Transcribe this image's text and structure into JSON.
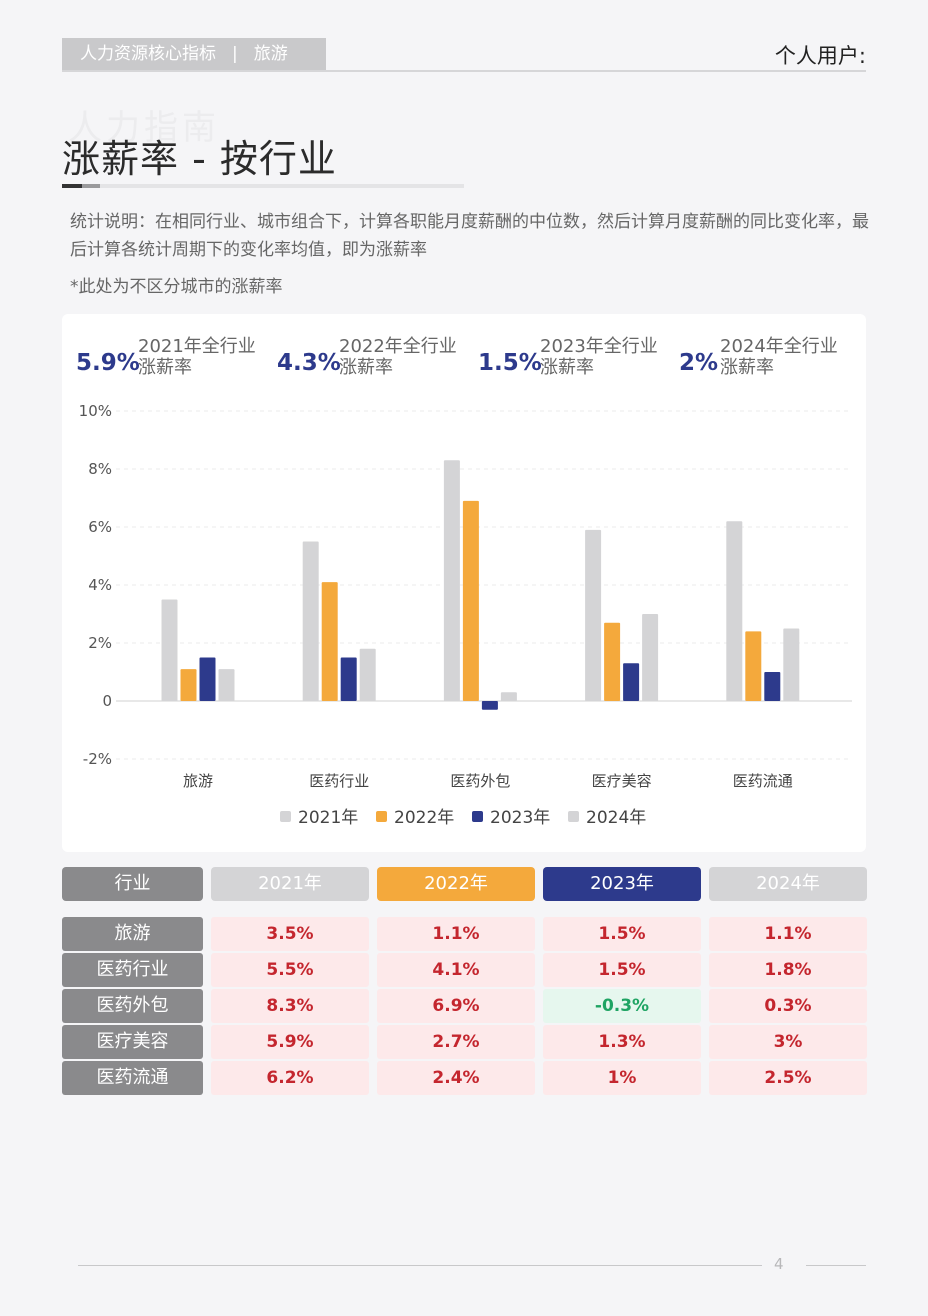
{
  "header": {
    "section": "人力资源核心指标",
    "separator": "|",
    "category": "旅游",
    "user_label": "个人用户:"
  },
  "watermark": "人力指南",
  "title": "涨薪率 - 按行业",
  "description": "统计说明：在相同行业、城市组合下，计算各职能月度薪酬的中位数，然后计算月度薪酬的同比变化率，最后计算各统计周期下的变化率均值，即为涨薪率",
  "note": "*此处为不区分城市的涨薪率",
  "kpis": [
    {
      "value": "5.9%",
      "label_line1": "2021年全行业",
      "label_line2": "涨薪率"
    },
    {
      "value": "4.3%",
      "label_line1": "2022年全行业",
      "label_line2": "涨薪率"
    },
    {
      "value": "1.5%",
      "label_line1": "2023年全行业",
      "label_line2": "涨薪率"
    },
    {
      "value": "2%",
      "label_line1": "2024年全行业",
      "label_line2": "涨薪率"
    }
  ],
  "chart_data": {
    "type": "bar",
    "categories": [
      "旅游",
      "医药行业",
      "医药外包",
      "医疗美容",
      "医药流通"
    ],
    "series": [
      {
        "name": "2021年",
        "color": "#d4d4d6",
        "values": [
          3.5,
          5.5,
          8.3,
          5.9,
          6.2
        ]
      },
      {
        "name": "2022年",
        "color": "#f4a93c",
        "values": [
          1.1,
          4.1,
          6.9,
          2.7,
          2.4
        ]
      },
      {
        "name": "2023年",
        "color": "#2d3a8c",
        "values": [
          1.5,
          1.5,
          -0.3,
          1.3,
          1.0
        ]
      },
      {
        "name": "2024年",
        "color": "#d4d4d6",
        "values": [
          1.1,
          1.8,
          0.3,
          3.0,
          2.5
        ]
      }
    ],
    "yticks": [
      "10%",
      "8%",
      "6%",
      "4%",
      "2%",
      "0",
      "-2%"
    ],
    "ylim": [
      -2,
      10
    ],
    "grid": true,
    "legend_position": "bottom"
  },
  "table": {
    "header": {
      "label": "行业",
      "years": [
        "2021年",
        "2022年",
        "2023年",
        "2024年"
      ]
    },
    "header_colors": [
      "#8a8a8c",
      "#d4d4d6",
      "#f4a93c",
      "#2d3a8c",
      "#d4d4d6"
    ],
    "rows": [
      {
        "industry": "旅游",
        "values": [
          "3.5%",
          "1.1%",
          "1.5%",
          "1.1%"
        ]
      },
      {
        "industry": "医药行业",
        "values": [
          "5.5%",
          "4.1%",
          "1.5%",
          "1.8%"
        ]
      },
      {
        "industry": "医药外包",
        "values": [
          "8.3%",
          "6.9%",
          "-0.3%",
          "0.3%"
        ]
      },
      {
        "industry": "医疗美容",
        "values": [
          "5.9%",
          "2.7%",
          "1.3%",
          "3%"
        ]
      },
      {
        "industry": "医药流通",
        "values": [
          "6.2%",
          "2.4%",
          "1%",
          "2.5%"
        ]
      }
    ]
  },
  "page_number": "4"
}
